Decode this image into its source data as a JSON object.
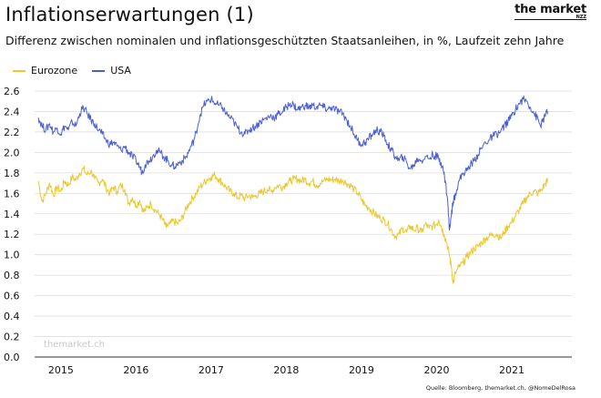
{
  "header": {
    "title": "Inflationserwartungen (1)",
    "subtitle": "Differenz zwischen nominalen und inflationsgeschützten Staatsanleihen, in %, Laufzeit zehn Jahre"
  },
  "logo": {
    "main": "the market",
    "sub": "NZZ"
  },
  "footer": {
    "source": "Quelle: Bloomberg, themarket.ch, @NomeDelRosa",
    "watermark": "themarket.ch"
  },
  "colors": {
    "eurozone": "#ecc72e",
    "usa": "#4b5fd3",
    "grid": "#dedede",
    "axis": "#333333"
  },
  "chart_data": {
    "type": "line",
    "title": "Inflationserwartungen (1)",
    "xlabel": "",
    "ylabel": "",
    "ylim": [
      0,
      2.6
    ],
    "yticks": [
      "0.0",
      "0.2",
      "0.4",
      "0.6",
      "0.8",
      "1.0",
      "1.2",
      "1.4",
      "1.6",
      "1.8",
      "2.0",
      "2.2",
      "2.4",
      "2.6"
    ],
    "xlim": [
      2014.65,
      2021.8
    ],
    "xticks": [
      "2015",
      "2016",
      "2017",
      "2018",
      "2019",
      "2020",
      "2021"
    ],
    "legend_position": "top-left",
    "series": [
      {
        "name": "Eurozone",
        "points": [
          [
            2014.7,
            1.72
          ],
          [
            2014.75,
            1.52
          ],
          [
            2014.8,
            1.6
          ],
          [
            2014.85,
            1.7
          ],
          [
            2014.9,
            1.58
          ],
          [
            2014.95,
            1.66
          ],
          [
            2015.0,
            1.62
          ],
          [
            2015.05,
            1.72
          ],
          [
            2015.1,
            1.68
          ],
          [
            2015.15,
            1.76
          ],
          [
            2015.2,
            1.73
          ],
          [
            2015.25,
            1.8
          ],
          [
            2015.3,
            1.84
          ],
          [
            2015.35,
            1.78
          ],
          [
            2015.4,
            1.82
          ],
          [
            2015.45,
            1.74
          ],
          [
            2015.5,
            1.7
          ],
          [
            2015.55,
            1.74
          ],
          [
            2015.6,
            1.66
          ],
          [
            2015.65,
            1.6
          ],
          [
            2015.7,
            1.66
          ],
          [
            2015.75,
            1.62
          ],
          [
            2015.8,
            1.68
          ],
          [
            2015.85,
            1.64
          ],
          [
            2015.9,
            1.5
          ],
          [
            2015.95,
            1.56
          ],
          [
            2016.0,
            1.48
          ],
          [
            2016.05,
            1.53
          ],
          [
            2016.1,
            1.42
          ],
          [
            2016.15,
            1.46
          ],
          [
            2016.2,
            1.5
          ],
          [
            2016.25,
            1.44
          ],
          [
            2016.3,
            1.4
          ],
          [
            2016.35,
            1.35
          ],
          [
            2016.4,
            1.27
          ],
          [
            2016.45,
            1.3
          ],
          [
            2016.5,
            1.33
          ],
          [
            2016.55,
            1.3
          ],
          [
            2016.6,
            1.34
          ],
          [
            2016.65,
            1.42
          ],
          [
            2016.7,
            1.5
          ],
          [
            2016.75,
            1.55
          ],
          [
            2016.8,
            1.6
          ],
          [
            2016.85,
            1.66
          ],
          [
            2016.9,
            1.7
          ],
          [
            2016.95,
            1.74
          ],
          [
            2017.0,
            1.76
          ],
          [
            2017.05,
            1.78
          ],
          [
            2017.1,
            1.74
          ],
          [
            2017.15,
            1.7
          ],
          [
            2017.2,
            1.66
          ],
          [
            2017.25,
            1.62
          ],
          [
            2017.3,
            1.6
          ],
          [
            2017.35,
            1.56
          ],
          [
            2017.4,
            1.58
          ],
          [
            2017.45,
            1.55
          ],
          [
            2017.5,
            1.58
          ],
          [
            2017.55,
            1.56
          ],
          [
            2017.6,
            1.58
          ],
          [
            2017.65,
            1.6
          ],
          [
            2017.7,
            1.62
          ],
          [
            2017.75,
            1.64
          ],
          [
            2017.8,
            1.62
          ],
          [
            2017.85,
            1.66
          ],
          [
            2017.9,
            1.68
          ],
          [
            2017.95,
            1.66
          ],
          [
            2018.0,
            1.7
          ],
          [
            2018.05,
            1.72
          ],
          [
            2018.1,
            1.74
          ],
          [
            2018.15,
            1.74
          ],
          [
            2018.2,
            1.72
          ],
          [
            2018.25,
            1.74
          ],
          [
            2018.3,
            1.7
          ],
          [
            2018.35,
            1.72
          ],
          [
            2018.4,
            1.68
          ],
          [
            2018.45,
            1.7
          ],
          [
            2018.5,
            1.72
          ],
          [
            2018.55,
            1.74
          ],
          [
            2018.6,
            1.73
          ],
          [
            2018.65,
            1.74
          ],
          [
            2018.7,
            1.72
          ],
          [
            2018.75,
            1.73
          ],
          [
            2018.8,
            1.7
          ],
          [
            2018.85,
            1.68
          ],
          [
            2018.9,
            1.64
          ],
          [
            2018.95,
            1.6
          ],
          [
            2019.0,
            1.54
          ],
          [
            2019.05,
            1.48
          ],
          [
            2019.1,
            1.46
          ],
          [
            2019.15,
            1.42
          ],
          [
            2019.2,
            1.38
          ],
          [
            2019.25,
            1.36
          ],
          [
            2019.3,
            1.34
          ],
          [
            2019.35,
            1.3
          ],
          [
            2019.4,
            1.24
          ],
          [
            2019.45,
            1.18
          ],
          [
            2019.5,
            1.2
          ],
          [
            2019.55,
            1.26
          ],
          [
            2019.6,
            1.22
          ],
          [
            2019.65,
            1.28
          ],
          [
            2019.7,
            1.24
          ],
          [
            2019.75,
            1.26
          ],
          [
            2019.8,
            1.22
          ],
          [
            2019.85,
            1.3
          ],
          [
            2019.9,
            1.26
          ],
          [
            2019.95,
            1.28
          ],
          [
            2020.0,
            1.3
          ],
          [
            2020.03,
            1.34
          ],
          [
            2020.06,
            1.28
          ],
          [
            2020.1,
            1.2
          ],
          [
            2020.14,
            1.1
          ],
          [
            2020.17,
            1.0
          ],
          [
            2020.2,
            0.86
          ],
          [
            2020.22,
            0.72
          ],
          [
            2020.25,
            0.82
          ],
          [
            2020.3,
            0.88
          ],
          [
            2020.35,
            0.92
          ],
          [
            2020.4,
            0.98
          ],
          [
            2020.45,
            1.02
          ],
          [
            2020.5,
            1.06
          ],
          [
            2020.55,
            1.08
          ],
          [
            2020.6,
            1.12
          ],
          [
            2020.65,
            1.16
          ],
          [
            2020.7,
            1.18
          ],
          [
            2020.75,
            1.2
          ],
          [
            2020.8,
            1.2
          ],
          [
            2020.85,
            1.16
          ],
          [
            2020.9,
            1.22
          ],
          [
            2020.95,
            1.28
          ],
          [
            2021.0,
            1.32
          ],
          [
            2021.05,
            1.38
          ],
          [
            2021.1,
            1.44
          ],
          [
            2021.15,
            1.5
          ],
          [
            2021.2,
            1.56
          ],
          [
            2021.25,
            1.6
          ],
          [
            2021.3,
            1.62
          ],
          [
            2021.35,
            1.6
          ],
          [
            2021.4,
            1.64
          ],
          [
            2021.45,
            1.7
          ],
          [
            2021.48,
            1.72
          ]
        ]
      },
      {
        "name": "USA",
        "points": [
          [
            2014.7,
            2.34
          ],
          [
            2014.75,
            2.26
          ],
          [
            2014.8,
            2.22
          ],
          [
            2014.85,
            2.28
          ],
          [
            2014.9,
            2.2
          ],
          [
            2014.95,
            2.24
          ],
          [
            2015.0,
            2.18
          ],
          [
            2015.05,
            2.26
          ],
          [
            2015.1,
            2.22
          ],
          [
            2015.15,
            2.3
          ],
          [
            2015.2,
            2.26
          ],
          [
            2015.25,
            2.38
          ],
          [
            2015.3,
            2.44
          ],
          [
            2015.35,
            2.38
          ],
          [
            2015.4,
            2.32
          ],
          [
            2015.45,
            2.28
          ],
          [
            2015.5,
            2.22
          ],
          [
            2015.55,
            2.18
          ],
          [
            2015.6,
            2.12
          ],
          [
            2015.65,
            2.08
          ],
          [
            2015.7,
            2.1
          ],
          [
            2015.75,
            2.06
          ],
          [
            2015.8,
            2.02
          ],
          [
            2015.85,
            2.06
          ],
          [
            2015.9,
            2.0
          ],
          [
            2015.95,
            1.96
          ],
          [
            2016.0,
            1.92
          ],
          [
            2016.05,
            1.86
          ],
          [
            2016.08,
            1.8
          ],
          [
            2016.12,
            1.88
          ],
          [
            2016.17,
            1.92
          ],
          [
            2016.22,
            1.96
          ],
          [
            2016.27,
            2.02
          ],
          [
            2016.32,
            2.0
          ],
          [
            2016.37,
            1.96
          ],
          [
            2016.42,
            1.92
          ],
          [
            2016.47,
            1.88
          ],
          [
            2016.52,
            1.86
          ],
          [
            2016.57,
            1.9
          ],
          [
            2016.62,
            1.92
          ],
          [
            2016.67,
            1.96
          ],
          [
            2016.72,
            2.04
          ],
          [
            2016.77,
            2.12
          ],
          [
            2016.8,
            2.2
          ],
          [
            2016.85,
            2.36
          ],
          [
            2016.9,
            2.46
          ],
          [
            2016.95,
            2.5
          ],
          [
            2017.0,
            2.52
          ],
          [
            2017.05,
            2.48
          ],
          [
            2017.1,
            2.46
          ],
          [
            2017.15,
            2.44
          ],
          [
            2017.2,
            2.38
          ],
          [
            2017.25,
            2.34
          ],
          [
            2017.3,
            2.3
          ],
          [
            2017.35,
            2.24
          ],
          [
            2017.4,
            2.2
          ],
          [
            2017.45,
            2.18
          ],
          [
            2017.5,
            2.22
          ],
          [
            2017.55,
            2.24
          ],
          [
            2017.6,
            2.26
          ],
          [
            2017.65,
            2.3
          ],
          [
            2017.7,
            2.32
          ],
          [
            2017.75,
            2.34
          ],
          [
            2017.8,
            2.36
          ],
          [
            2017.85,
            2.34
          ],
          [
            2017.9,
            2.38
          ],
          [
            2017.95,
            2.4
          ],
          [
            2018.0,
            2.44
          ],
          [
            2018.05,
            2.48
          ],
          [
            2018.1,
            2.46
          ],
          [
            2018.15,
            2.42
          ],
          [
            2018.2,
            2.44
          ],
          [
            2018.25,
            2.46
          ],
          [
            2018.3,
            2.44
          ],
          [
            2018.35,
            2.46
          ],
          [
            2018.4,
            2.44
          ],
          [
            2018.45,
            2.46
          ],
          [
            2018.5,
            2.44
          ],
          [
            2018.55,
            2.42
          ],
          [
            2018.6,
            2.44
          ],
          [
            2018.65,
            2.42
          ],
          [
            2018.7,
            2.4
          ],
          [
            2018.75,
            2.38
          ],
          [
            2018.8,
            2.32
          ],
          [
            2018.85,
            2.26
          ],
          [
            2018.9,
            2.18
          ],
          [
            2018.95,
            2.12
          ],
          [
            2019.0,
            2.08
          ],
          [
            2019.05,
            2.1
          ],
          [
            2019.1,
            2.14
          ],
          [
            2019.15,
            2.18
          ],
          [
            2019.2,
            2.22
          ],
          [
            2019.25,
            2.2
          ],
          [
            2019.3,
            2.16
          ],
          [
            2019.35,
            2.08
          ],
          [
            2019.4,
            2.02
          ],
          [
            2019.45,
            1.96
          ],
          [
            2019.5,
            1.92
          ],
          [
            2019.55,
            1.96
          ],
          [
            2019.6,
            1.9
          ],
          [
            2019.65,
            1.84
          ],
          [
            2019.7,
            1.88
          ],
          [
            2019.75,
            1.94
          ],
          [
            2019.8,
            1.92
          ],
          [
            2019.85,
            1.96
          ],
          [
            2019.9,
            1.94
          ],
          [
            2019.95,
            1.98
          ],
          [
            2020.0,
            1.96
          ],
          [
            2020.03,
            1.94
          ],
          [
            2020.06,
            1.9
          ],
          [
            2020.09,
            1.82
          ],
          [
            2020.12,
            1.7
          ],
          [
            2020.15,
            1.5
          ],
          [
            2020.17,
            1.24
          ],
          [
            2020.19,
            1.36
          ],
          [
            2020.22,
            1.52
          ],
          [
            2020.25,
            1.6
          ],
          [
            2020.3,
            1.72
          ],
          [
            2020.35,
            1.8
          ],
          [
            2020.4,
            1.82
          ],
          [
            2020.45,
            1.88
          ],
          [
            2020.5,
            1.92
          ],
          [
            2020.55,
            1.98
          ],
          [
            2020.6,
            2.04
          ],
          [
            2020.65,
            2.1
          ],
          [
            2020.7,
            2.12
          ],
          [
            2020.75,
            2.16
          ],
          [
            2020.8,
            2.18
          ],
          [
            2020.85,
            2.2
          ],
          [
            2020.9,
            2.26
          ],
          [
            2020.95,
            2.3
          ],
          [
            2021.0,
            2.36
          ],
          [
            2021.05,
            2.42
          ],
          [
            2021.1,
            2.48
          ],
          [
            2021.15,
            2.52
          ],
          [
            2021.2,
            2.5
          ],
          [
            2021.25,
            2.44
          ],
          [
            2021.3,
            2.38
          ],
          [
            2021.35,
            2.32
          ],
          [
            2021.38,
            2.26
          ],
          [
            2021.41,
            2.3
          ],
          [
            2021.44,
            2.36
          ],
          [
            2021.48,
            2.4
          ]
        ]
      }
    ]
  }
}
